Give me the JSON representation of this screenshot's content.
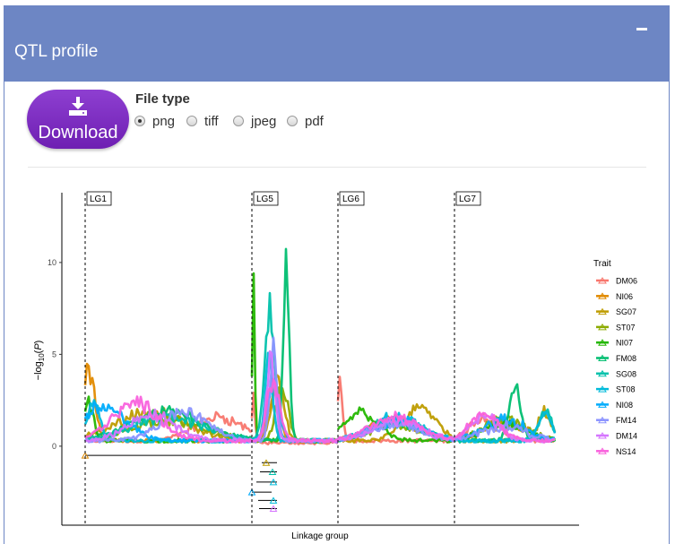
{
  "panel": {
    "title": "QTL profile",
    "collapse_icon": "minus-icon"
  },
  "download": {
    "label": "Download",
    "icon": "download-icon"
  },
  "file_type": {
    "label": "File type",
    "options": [
      "png",
      "tiff",
      "jpeg",
      "pdf"
    ],
    "selected": "png"
  },
  "colors": {
    "header": "#6d86c4",
    "button": "#7b2cc0"
  },
  "chart_data": {
    "type": "line",
    "xlabel": "Linkage group",
    "ylabel": "−log10(P)",
    "y_ticks": [
      0,
      5,
      10
    ],
    "ylim": [
      -4.3,
      13.8
    ],
    "linkage_groups": [
      "LG1",
      "LG5",
      "LG6",
      "LG7"
    ],
    "legend_title": "Trait",
    "legend_position": "right",
    "series": [
      {
        "name": "DM06",
        "color": "#F8766D"
      },
      {
        "name": "NI06",
        "color": "#E18A00"
      },
      {
        "name": "SG07",
        "color": "#BE9C00"
      },
      {
        "name": "ST07",
        "color": "#8CAB00"
      },
      {
        "name": "NI07",
        "color": "#24B700"
      },
      {
        "name": "FM08",
        "color": "#00BE70"
      },
      {
        "name": "SG08",
        "color": "#00C1AB"
      },
      {
        "name": "ST08",
        "color": "#00BBDA"
      },
      {
        "name": "NI08",
        "color": "#00ACFC"
      },
      {
        "name": "FM14",
        "color": "#8B93FF"
      },
      {
        "name": "DM14",
        "color": "#D575FE"
      },
      {
        "name": "NS14",
        "color": "#F962DD"
      }
    ]
  }
}
